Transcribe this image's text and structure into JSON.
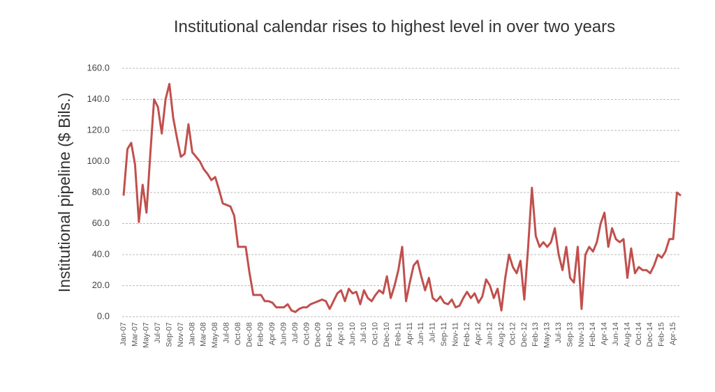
{
  "chart_data": {
    "type": "line",
    "title": "Institutional calendar rises to highest level in over two years",
    "y_label": "Institutional pipeline ($ Bils.)",
    "categories": [
      "Jan-07",
      null,
      null,
      "Mar-07",
      null,
      null,
      "May-07",
      null,
      null,
      "Jul-07",
      null,
      null,
      "Sep-07",
      null,
      null,
      "Nov-07",
      null,
      null,
      "Jan-08",
      null,
      null,
      "Mar-08",
      null,
      null,
      "May-08",
      null,
      null,
      "Jul-08",
      null,
      null,
      "Oct-08",
      null,
      null,
      "Dec-08",
      null,
      null,
      "Feb-09",
      null,
      null,
      "Apr-09",
      null,
      null,
      "Jun-09",
      null,
      null,
      "Jul-09",
      null,
      null,
      "Oct-09",
      null,
      null,
      "Dec-09",
      null,
      null,
      "Feb-10",
      null,
      null,
      "Apr-10",
      null,
      null,
      "Jun-10",
      null,
      null,
      "Jul-10",
      null,
      null,
      "Oct-10",
      null,
      null,
      "Dec-10",
      null,
      null,
      "Feb-11",
      null,
      null,
      "Apr-11",
      null,
      null,
      "Jun-11",
      null,
      null,
      "Jul-11",
      null,
      null,
      "Sep-11",
      null,
      null,
      "Nov-11",
      null,
      null,
      "Feb-12",
      null,
      null,
      "Apr-12",
      null,
      null,
      "Jun-12",
      null,
      null,
      "Aug-12",
      null,
      null,
      "Oct-12",
      null,
      null,
      "Dec-12",
      null,
      null,
      "Feb-13",
      null,
      null,
      "May-13",
      null,
      null,
      "Jul-13",
      null,
      null,
      "Sep-13",
      null,
      null,
      "Nov-13",
      null,
      null,
      "Feb-14",
      null,
      null,
      "Apr-14",
      null,
      null,
      "Jun-14",
      null,
      null,
      "Aug-14",
      null,
      null,
      "Oct-14",
      null,
      null,
      "Dec-14",
      null,
      null,
      "Feb-15",
      null,
      null,
      "Apr-15",
      null,
      null
    ],
    "series": [
      {
        "name": "Institutional pipeline",
        "color": "#c0504d",
        "values": [
          78,
          108,
          112,
          98,
          61,
          85,
          67,
          105,
          140,
          135,
          118,
          140,
          150,
          128,
          115,
          103,
          105,
          124,
          106,
          103,
          100,
          95,
          92,
          88,
          90,
          82,
          73,
          72,
          71,
          65,
          45,
          45,
          45,
          28,
          14,
          14,
          14,
          10,
          10,
          9,
          6,
          6,
          6,
          8,
          4,
          3,
          5,
          6,
          6,
          8,
          9,
          10,
          11,
          10,
          5,
          10,
          15,
          17,
          10,
          18,
          15,
          16,
          8,
          17,
          12,
          10,
          14,
          17,
          15,
          26,
          12,
          20,
          30,
          45,
          10,
          22,
          33,
          36,
          26,
          17,
          25,
          12,
          10,
          13,
          9,
          8,
          11,
          6,
          7,
          12,
          16,
          12,
          15,
          9,
          13,
          24,
          20,
          12,
          18,
          4,
          25,
          40,
          32,
          28,
          36,
          11,
          45,
          83,
          52,
          45,
          48,
          45,
          48,
          57,
          40,
          30,
          45,
          25,
          22,
          45,
          5,
          40,
          45,
          42,
          48,
          60,
          67,
          45,
          57,
          50,
          48,
          50,
          25,
          44,
          28,
          32,
          30,
          30,
          28,
          33,
          40,
          38,
          42,
          50,
          50,
          80,
          78
        ]
      }
    ],
    "ylim": [
      0,
      160
    ],
    "yticks": [
      {
        "value": 0,
        "label": "0.0"
      },
      {
        "value": 20,
        "label": "20.0"
      },
      {
        "value": 40,
        "label": "40.0"
      },
      {
        "value": 60,
        "label": "60.0"
      },
      {
        "value": 80,
        "label": "80.0"
      },
      {
        "value": 100,
        "label": "100.0"
      },
      {
        "value": 120,
        "label": "120.0"
      },
      {
        "value": 140,
        "label": "140.0"
      },
      {
        "value": 160,
        "label": "160.0"
      }
    ],
    "grid": true
  }
}
